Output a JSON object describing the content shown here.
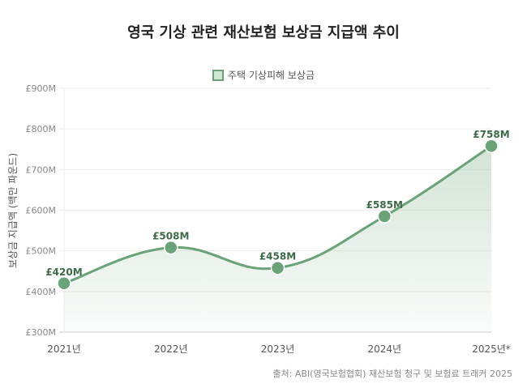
{
  "chart_data": {
    "type": "line",
    "title": "영국 기상 관련 재산보험 보상금 지급액 추이",
    "legend": "주택 기상피해 보상금",
    "legend_placement": "top-center",
    "categories": [
      "2021년",
      "2022년",
      "2023년",
      "2024년",
      "2025년*"
    ],
    "values": [
      420,
      508,
      458,
      585,
      758
    ],
    "data_labels": [
      "£420M",
      "£508M",
      "£458M",
      "£585M",
      "£758M"
    ],
    "ylabel": "보상금 지급액 (백만 파운드)",
    "xlabel": "",
    "ylim": [
      300,
      900
    ],
    "yticks": [
      300,
      400,
      500,
      600,
      700,
      800,
      900
    ],
    "ytick_labels": [
      "£300M",
      "£400M",
      "£500M",
      "£600M",
      "£700M",
      "£800M",
      "£900M"
    ],
    "grid": true,
    "color": "#6aa377",
    "source": "출처: ABI(영국보험협회) 재산보험 청구 및 보험료 트래커 2025"
  }
}
